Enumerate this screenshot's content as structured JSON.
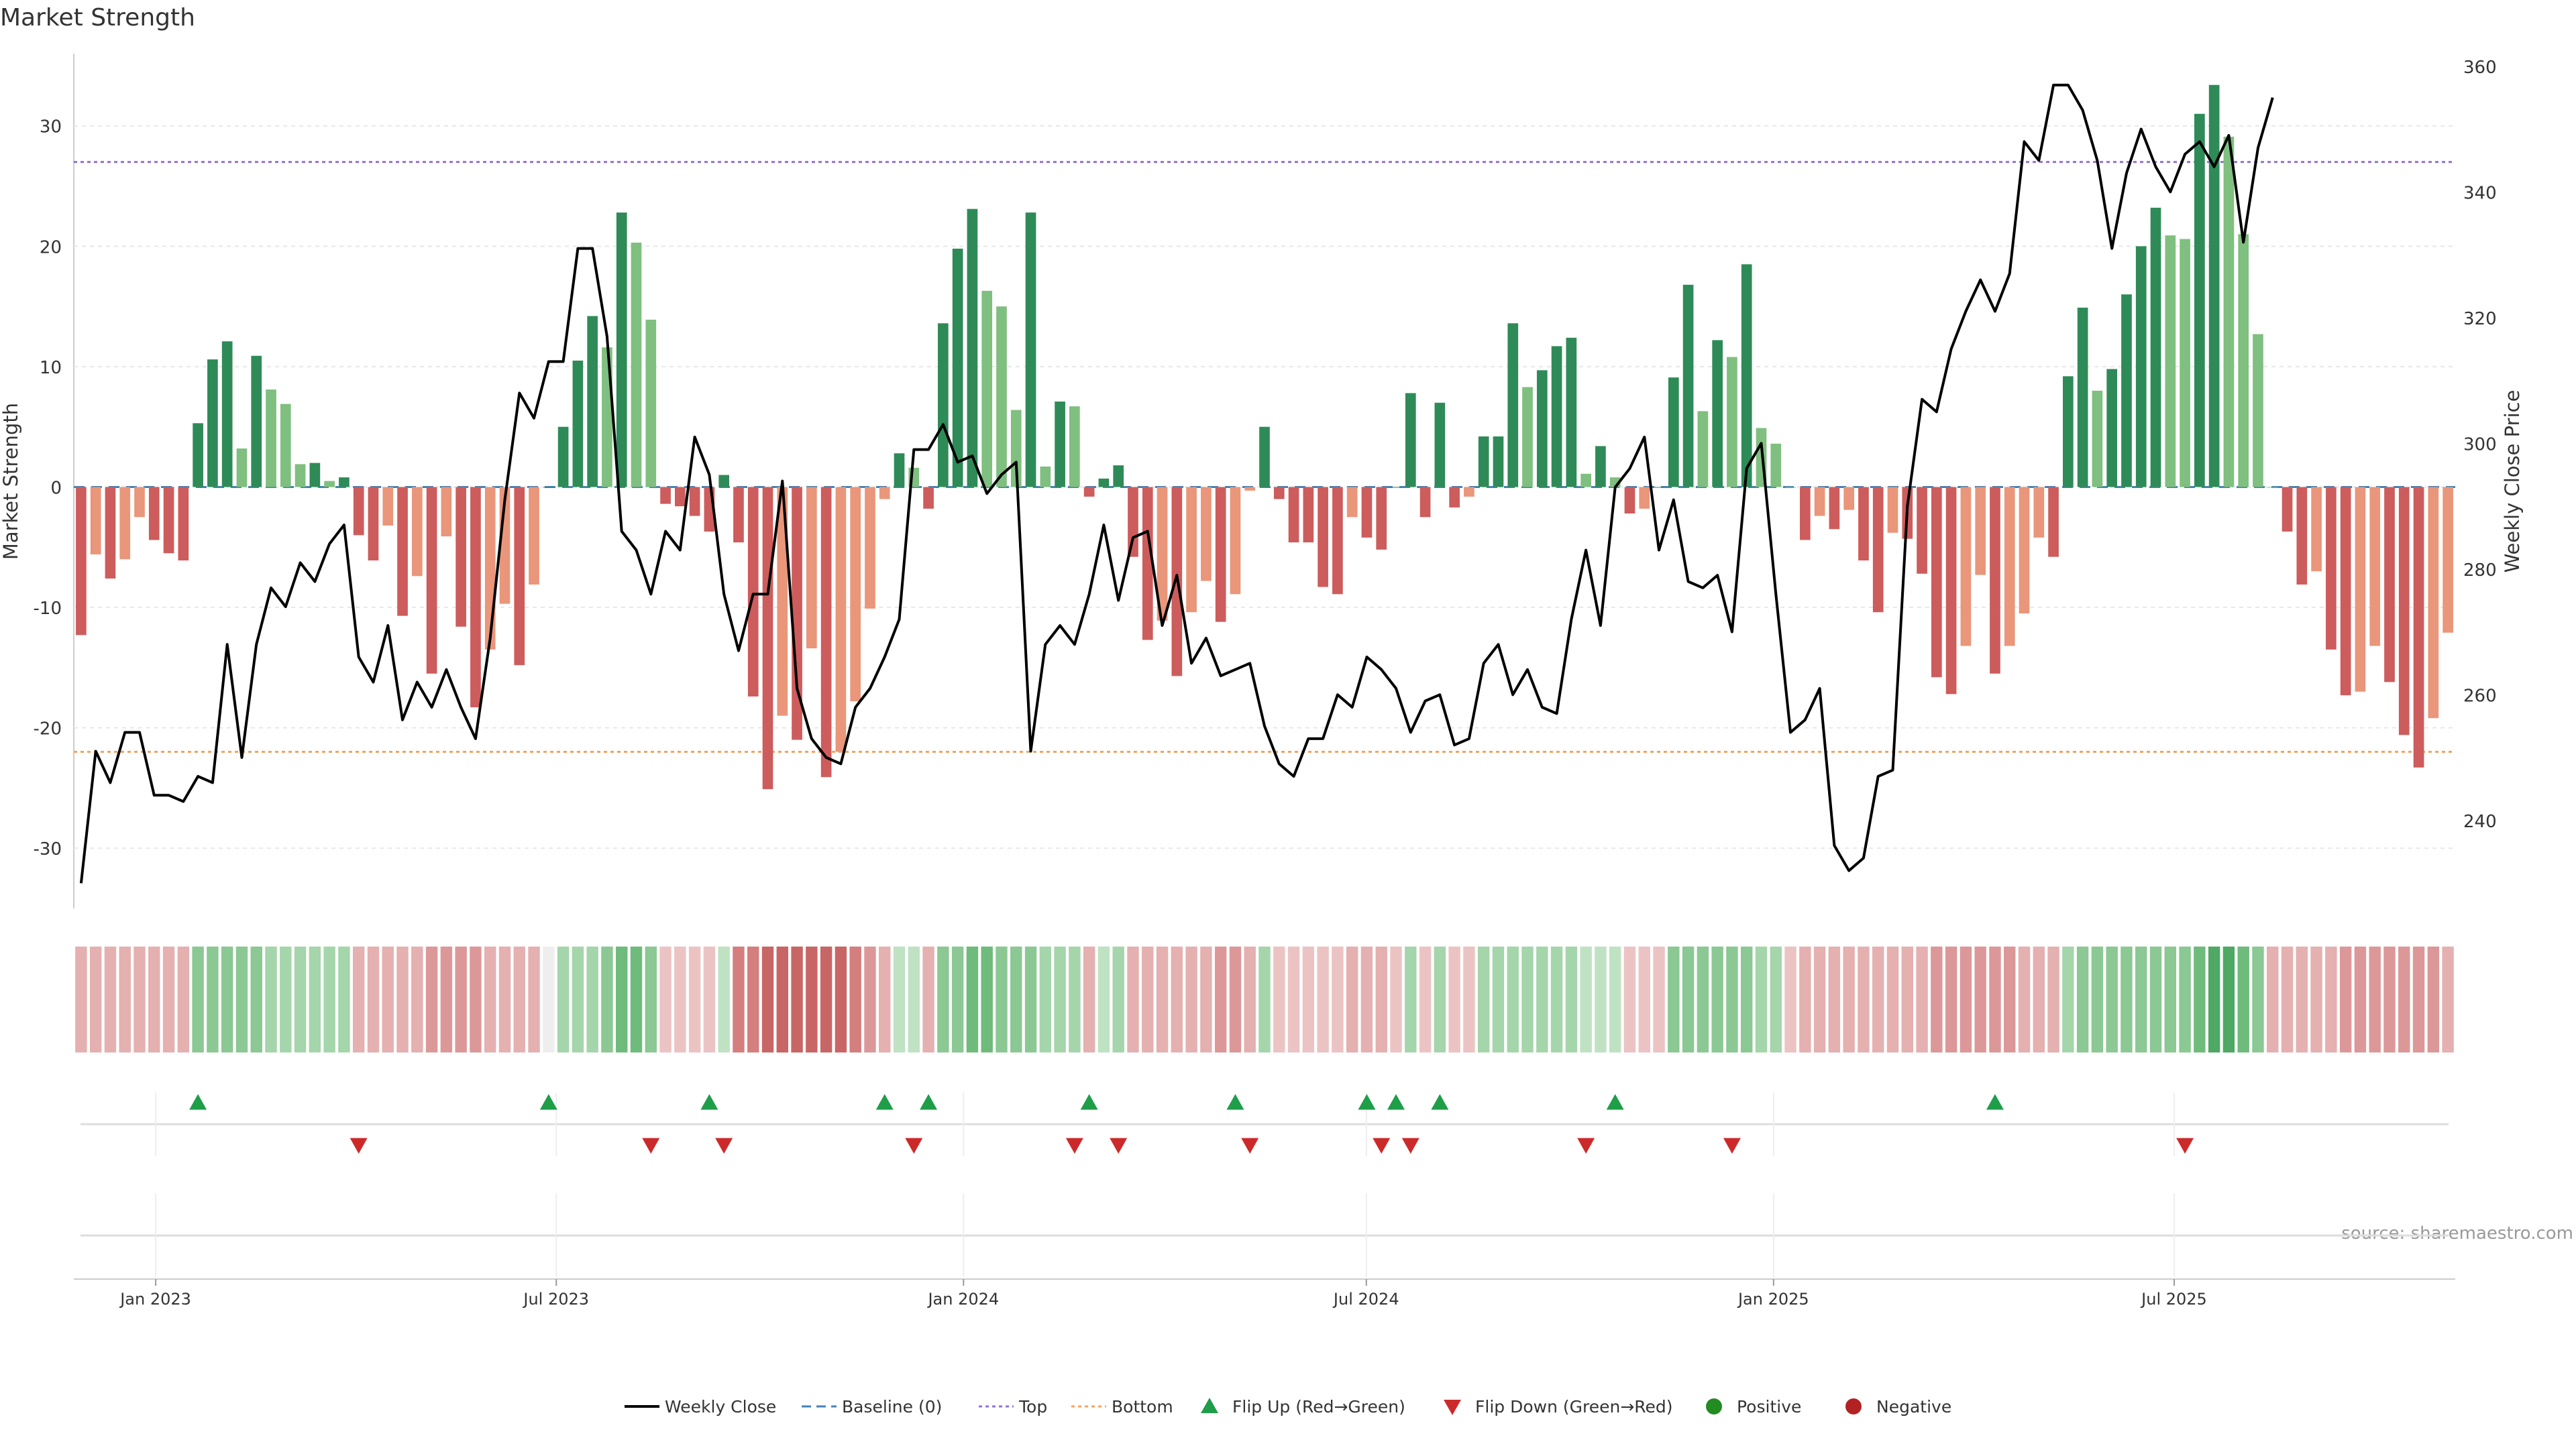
{
  "chart_data": {
    "type": "bar",
    "title": "Market Strength",
    "ylabel": "Market Strength",
    "y2label": "Weekly Close Price",
    "source": "source: sharemaestro.com",
    "ylim": [
      -35,
      36
    ],
    "y2lim": [
      226,
      362
    ],
    "yticks": [
      -30,
      -20,
      -10,
      0,
      10,
      20,
      30
    ],
    "y2ticks": [
      240,
      260,
      280,
      300,
      320,
      340,
      360
    ],
    "x_start": "2022-11-25",
    "x_end": "2025-11-05",
    "xticks": [
      {
        "date": "2023-01-01",
        "label": "Jan 2023"
      },
      {
        "date": "2023-07-01",
        "label": "Jul 2023"
      },
      {
        "date": "2024-01-01",
        "label": "Jan 2024"
      },
      {
        "date": "2024-07-01",
        "label": "Jul 2024"
      },
      {
        "date": "2025-01-01",
        "label": "Jan 2025"
      },
      {
        "date": "2025-07-01",
        "label": "Jul 2025"
      }
    ],
    "top_line": 27,
    "bottom_line": -22,
    "grid": true,
    "legend_position": "bottom-center",
    "colors": {
      "pos_strong": "#2e8b57",
      "pos_light": "#7fbf7f",
      "neg_strong": "#cd5c5c",
      "neg_light": "#e9967a",
      "price": "#000000",
      "baseline": "#4682b4",
      "top": "#9370db",
      "bottom": "#f4a460",
      "flip_up": "#1e9e48",
      "flip_down": "#cc2a2a",
      "positive_dot": "#228b22",
      "negative_dot": "#b22222"
    },
    "series": [
      {
        "name": "Market Strength",
        "values": [
          -12.3,
          -5.6,
          -7.6,
          -6,
          -2.5,
          -4.4,
          -5.5,
          -6.1,
          5.3,
          10.6,
          12.1,
          3.2,
          10.9,
          8.1,
          6.9,
          1.9,
          2,
          0.5,
          0.8,
          -4,
          -6.1,
          -3.2,
          -10.7,
          -7.4,
          -15.5,
          -4.1,
          -11.6,
          -18.3,
          -13.5,
          -9.7,
          -14.8,
          -8.1,
          0,
          5,
          10.5,
          14.2,
          11.6,
          22.8,
          20.3,
          13.9,
          -1.4,
          -1.6,
          -2.4,
          -3.7,
          1,
          -4.6,
          -17.4,
          -25.1,
          -19,
          -21,
          -13.4,
          -24.1,
          -22,
          -17.8,
          -10.1,
          -1,
          2.8,
          1.6,
          -1.8,
          13.6,
          19.8,
          23.1,
          16.3,
          15,
          6.4,
          22.8,
          1.7,
          7.1,
          6.7,
          -0.8,
          0.7,
          1.8,
          -5.8,
          -12.7,
          -11.1,
          -15.7,
          -10.4,
          -7.8,
          -11.2,
          -8.9,
          -0.3,
          5,
          -1,
          -4.6,
          -4.6,
          -8.3,
          -8.9,
          -2.5,
          -4.2,
          -5.2,
          0,
          7.8,
          -2.5,
          7,
          -1.7,
          -0.8,
          4.2,
          4.2,
          13.6,
          8.3,
          9.7,
          11.7,
          12.4,
          1.1,
          3.4,
          0.8,
          -2.2,
          -1.8,
          0,
          9.1,
          16.8,
          6.3,
          12.2,
          10.8,
          18.5,
          4.9,
          3.6,
          0,
          -4.4,
          -2.4,
          -3.5,
          -1.9,
          -6.1,
          -10.4,
          -3.8,
          -4.3,
          -7.2,
          -15.8,
          -17.2,
          -13.2,
          -7.3,
          -15.5,
          -13.2,
          -10.5,
          -4.2,
          -5.8,
          9.2,
          14.9,
          8,
          9.8,
          16,
          20,
          23.2,
          20.9,
          20.6,
          31,
          33.4,
          29.1,
          21,
          12.7,
          0,
          -3.7,
          -8.1,
          -7,
          -13.5,
          -17.3,
          -17,
          -13.2,
          -16.2,
          -20.6,
          -23.3,
          -19.2,
          -12.1
        ]
      },
      {
        "name": "Weekly Close",
        "values": [
          230,
          251,
          246,
          254,
          254,
          244,
          244,
          243,
          247,
          246,
          268,
          250,
          268,
          277,
          274,
          281,
          278,
          284,
          287,
          266,
          262,
          271,
          256,
          262,
          258,
          264,
          258,
          253,
          269,
          291,
          308,
          304,
          313,
          313,
          331,
          331,
          317,
          286,
          283,
          276,
          286,
          283,
          301,
          295,
          276,
          267,
          276,
          276,
          294,
          261,
          253,
          250,
          249,
          258,
          261,
          266,
          272,
          299,
          299,
          303,
          297,
          298,
          292,
          295,
          297,
          251,
          268,
          271,
          268,
          276,
          287,
          275,
          285,
          286,
          271,
          279,
          265,
          269,
          263,
          264,
          265,
          255,
          249,
          247,
          253,
          253,
          260,
          258,
          266,
          264,
          261,
          254,
          259,
          260,
          252,
          253,
          265,
          268,
          260,
          264,
          258,
          257,
          272,
          283,
          271,
          293,
          296,
          301,
          283,
          291,
          278,
          277,
          279,
          270,
          296,
          300,
          276,
          254,
          256,
          261,
          236,
          232,
          234,
          247,
          248,
          290,
          307,
          305,
          315,
          321,
          326,
          321,
          327,
          348,
          345,
          357,
          357,
          353,
          345,
          331,
          343,
          350,
          344,
          340,
          346,
          348,
          344,
          349,
          332,
          347,
          355
        ]
      }
    ],
    "heat_values": [
      -3,
      -3,
      -3,
      -3,
      -3,
      -3,
      -3,
      -3,
      4,
      4,
      4,
      4,
      4,
      3,
      3,
      3,
      3,
      3,
      3,
      -3,
      -3,
      -3,
      -3,
      -3,
      -4,
      -4,
      -4,
      -4,
      -3,
      -3,
      -3,
      -3,
      0,
      3,
      3,
      3,
      4,
      5,
      5,
      4,
      -2,
      -2,
      -2,
      -2,
      2,
      -5,
      -5,
      -6,
      -6,
      -6,
      -6,
      -6,
      -6,
      -5,
      -4,
      -3,
      2,
      2,
      -3,
      4,
      4,
      5,
      5,
      4,
      4,
      4,
      3,
      3,
      3,
      -3,
      2,
      3,
      -3,
      -3,
      -3,
      -3,
      -3,
      -3,
      -4,
      -4,
      -3,
      3,
      -2,
      -2,
      -2,
      -2,
      -2,
      -3,
      -3,
      -3,
      -2,
      3,
      -2,
      3,
      -2,
      -2,
      3,
      3,
      3,
      3,
      3,
      3,
      3,
      2,
      2,
      2,
      -2,
      -2,
      -2,
      4,
      4,
      4,
      4,
      4,
      4,
      3,
      3,
      -2,
      -3,
      -3,
      -3,
      -3,
      -3,
      -3,
      -3,
      -3,
      -3,
      -4,
      -4,
      -4,
      -4,
      -4,
      -4,
      -3,
      -3,
      -3,
      3,
      4,
      4,
      4,
      4,
      4,
      4,
      4,
      4,
      5,
      6,
      6,
      5,
      4,
      -3,
      -3,
      -3,
      -3,
      -3,
      -4,
      -4,
      -4,
      -4,
      -4,
      -4,
      -4,
      -3
    ],
    "flip_up_index": [
      8,
      32,
      43,
      55,
      58,
      69,
      79,
      88,
      90,
      93,
      105,
      131
    ],
    "flip_down_index": [
      19,
      39,
      44,
      57,
      68,
      71,
      80,
      89,
      91,
      103,
      113,
      144
    ],
    "legend": [
      {
        "label": "Weekly Close",
        "kind": "line",
        "color": "price"
      },
      {
        "label": "Baseline (0)",
        "kind": "dash",
        "color": "baseline"
      },
      {
        "label": "Top",
        "kind": "dot",
        "color": "top"
      },
      {
        "label": "Bottom",
        "kind": "dot",
        "color": "bottom"
      },
      {
        "label": "Flip Up (Red→Green)",
        "kind": "tri-up",
        "color": "flip_up"
      },
      {
        "label": "Flip Down (Green→Red)",
        "kind": "tri-down",
        "color": "flip_down"
      },
      {
        "label": "Positive",
        "kind": "circle",
        "color": "positive_dot"
      },
      {
        "label": "Negative",
        "kind": "circle",
        "color": "negative_dot"
      }
    ]
  }
}
